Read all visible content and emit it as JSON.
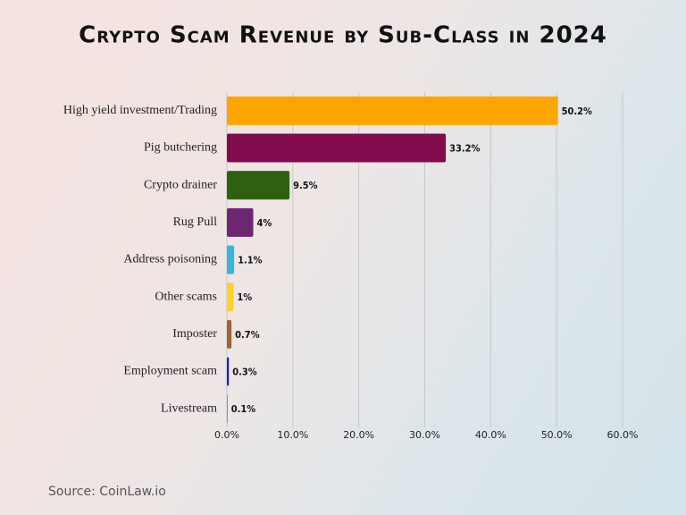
{
  "chart_data": {
    "type": "bar",
    "orientation": "horizontal",
    "title": "Crypto Scam Revenue by Sub-Class in 2024",
    "source": "Source: CoinLaw.io",
    "categories": [
      "High yield investment/Trading",
      "Pig butchering",
      "Crypto drainer",
      "Rug Pull",
      "Address poisoning",
      "Other scams",
      "Imposter",
      "Employment scam",
      "Livestream"
    ],
    "values": [
      50.2,
      33.2,
      9.5,
      4,
      1.1,
      1,
      0.7,
      0.3,
      0.1
    ],
    "value_labels": [
      "50.2%",
      "33.2%",
      "9.5%",
      "4%",
      "1.1%",
      "1%",
      "0.7%",
      "0.3%",
      "0.1%"
    ],
    "colors": [
      "#ffa500",
      "#800c4e",
      "#2e6010",
      "#6e2673",
      "#3cb4d9",
      "#ffd12a",
      "#a0623a",
      "#1a1acc",
      "#e04040"
    ],
    "xlim": [
      0,
      60
    ],
    "xticks": [
      {
        "value": 0,
        "label": "0.0%"
      },
      {
        "value": 10,
        "label": "10.0%"
      },
      {
        "value": 20,
        "label": "20.0%"
      },
      {
        "value": 30,
        "label": "30.0%"
      },
      {
        "value": 40,
        "label": "40.0%"
      },
      {
        "value": 50,
        "label": "50.0%"
      },
      {
        "value": 60,
        "label": "60.0%"
      }
    ],
    "grid": true
  }
}
